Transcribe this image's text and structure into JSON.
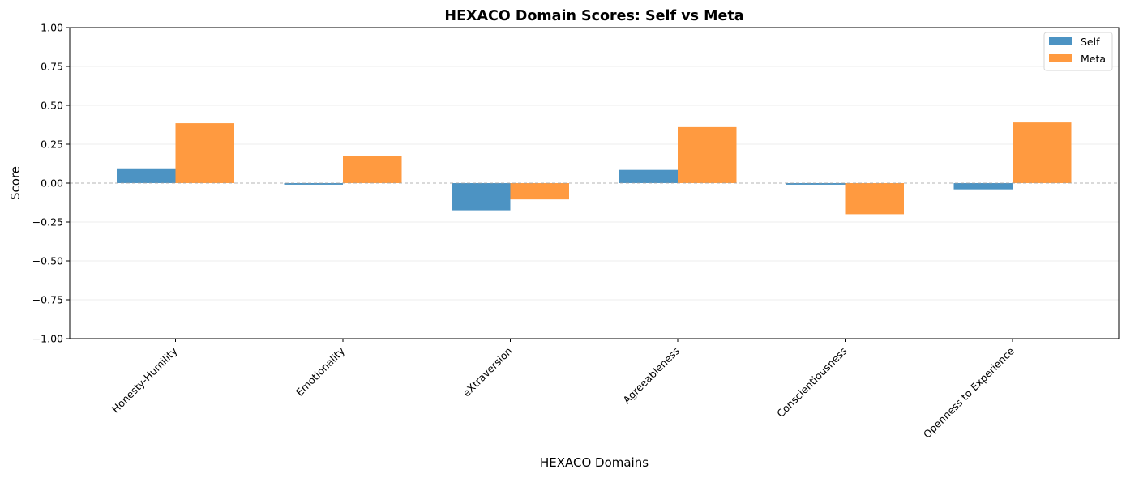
{
  "chart_data": {
    "type": "bar",
    "title": "HEXACO Domain Scores: Self vs Meta",
    "xlabel": "HEXACO Domains",
    "ylabel": "Score",
    "categories": [
      "Honesty-Humility",
      "Emotionality",
      "eXtraversion",
      "Agreeableness",
      "Conscientiousness",
      "Openness to Experience"
    ],
    "series": [
      {
        "name": "Self",
        "color": "#4c93c3",
        "values": [
          0.095,
          -0.01,
          -0.175,
          0.085,
          -0.01,
          -0.04
        ]
      },
      {
        "name": "Meta",
        "color": "#ff9a40",
        "values": [
          0.385,
          0.175,
          -0.105,
          0.36,
          -0.2,
          0.39
        ]
      }
    ],
    "ylim": [
      -1.0,
      1.0
    ],
    "yticks": [
      "1.00",
      "0.75",
      "0.50",
      "0.25",
      "0.00",
      "−0.25",
      "−0.50",
      "−0.75",
      "−1.00"
    ],
    "ytick_values": [
      1.0,
      0.75,
      0.5,
      0.25,
      0.0,
      -0.25,
      -0.5,
      -0.75,
      -1.0
    ],
    "grid": "y",
    "zero_line": "dashed",
    "legend_position": "top-right"
  }
}
